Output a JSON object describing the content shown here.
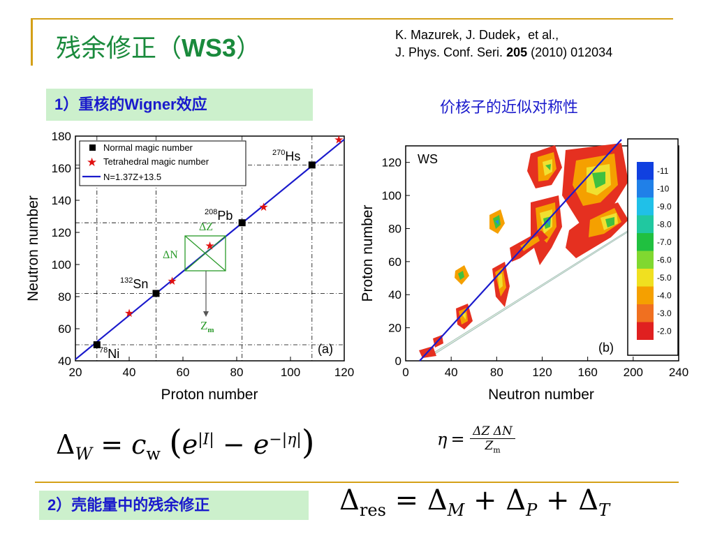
{
  "title": {
    "prefix": "残余修正（",
    "bold": "WS3",
    "suffix": "）"
  },
  "reference": {
    "line1": "K. Mazurek, J. Dudek，et al.,",
    "line2_pre": "J. Phys. Conf. Seri. ",
    "line2_bold": "205",
    "line2_post": " (2010) 012034"
  },
  "section1": {
    "num": "1",
    "pre": "）重核的",
    "bold": "Wigner",
    "post": "效应"
  },
  "section2": {
    "num": "2",
    "text": "）壳能量中的残余修正"
  },
  "caption_b": "价核子的近似对称性",
  "colors": {
    "title": "#1a8a3c",
    "label_text": "#1a1acc",
    "label_bg": "#ccf0cc",
    "rule": "#d4a017"
  },
  "plot_a": {
    "xlabel": "Proton number",
    "ylabel": "Neutron number",
    "xticks": [
      "20",
      "40",
      "60",
      "80",
      "100",
      "120"
    ],
    "yticks": [
      "40",
      "60",
      "80",
      "100",
      "120",
      "140",
      "160",
      "180"
    ],
    "legend": [
      "Normal magic number",
      "Tetrahedral magic number",
      "N=1.37Z+13.5"
    ],
    "panel": "(a)",
    "labels": {
      "hs_mass": "270",
      "hs": "Hs",
      "pb_mass": "208",
      "pb": "Pb",
      "sn_mass": "132",
      "sn": "Sn",
      "ni_mass": "78",
      "ni": "Ni",
      "dz": "ΔZ",
      "dn": "ΔN",
      "zm": "Z",
      "zm_sub": "m"
    }
  },
  "plot_b": {
    "xlabel": "Neutron number",
    "ylabel": "Proton number",
    "xticks": [
      "0",
      "40",
      "80",
      "120",
      "160",
      "200",
      "240"
    ],
    "yticks": [
      "0",
      "20",
      "40",
      "60",
      "80",
      "100",
      "120"
    ],
    "tag": "WS",
    "panel": "(b)",
    "colorbar": [
      "-11",
      "-10",
      "-9.0",
      "-8.0",
      "-7.0",
      "-6.0",
      "-5.0",
      "-4.0",
      "-3.0",
      "-2.0"
    ]
  },
  "chart_data": [
    {
      "type": "scatter",
      "title": "",
      "xlabel": "Proton number",
      "ylabel": "Neutron number",
      "xlim": [
        20,
        120
      ],
      "ylim": [
        40,
        180
      ],
      "series": [
        {
          "name": "Normal magic number",
          "x": [
            28,
            50,
            82,
            108
          ],
          "y": [
            50,
            82,
            126,
            162
          ]
        },
        {
          "name": "Tetrahedral magic number",
          "x": [
            40,
            56,
            70,
            90,
            118
          ],
          "y": [
            70,
            90,
            112,
            136,
            178
          ]
        },
        {
          "name": "N=1.37Z+13.5",
          "type": "line",
          "x": [
            20,
            120
          ],
          "y": [
            40.9,
            177.9
          ]
        }
      ]
    },
    {
      "type": "heatmap",
      "title": "",
      "xlabel": "Neutron number",
      "ylabel": "Proton number",
      "xlim": [
        0,
        240
      ],
      "ylim": [
        0,
        130
      ],
      "colorbar": [
        -11,
        -10,
        -9.0,
        -8.0,
        -7.0,
        -6.0,
        -5.0,
        -4.0,
        -3.0,
        -2.0
      ]
    }
  ]
}
